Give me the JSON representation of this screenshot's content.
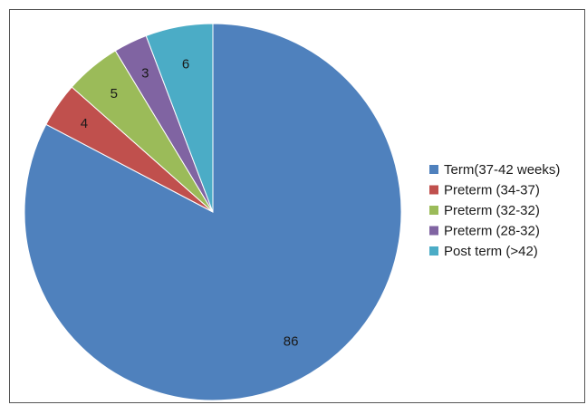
{
  "chart_data": {
    "type": "pie",
    "title": "",
    "categories": [
      "Term(37-42 weeks)",
      "Preterm (34-37)",
      "Preterm (32-32)",
      "Preterm (28-32)",
      "Post term (>42)"
    ],
    "values": [
      86,
      4,
      5,
      3,
      6
    ],
    "data_labels": [
      "86",
      "4",
      "5",
      "3",
      "6"
    ],
    "colors": [
      "#4f81bd",
      "#c0504d",
      "#9bbb59",
      "#8064a2",
      "#4bacc6"
    ],
    "legend_position": "right",
    "start_angle": "12 o'clock",
    "direction": "clockwise"
  }
}
